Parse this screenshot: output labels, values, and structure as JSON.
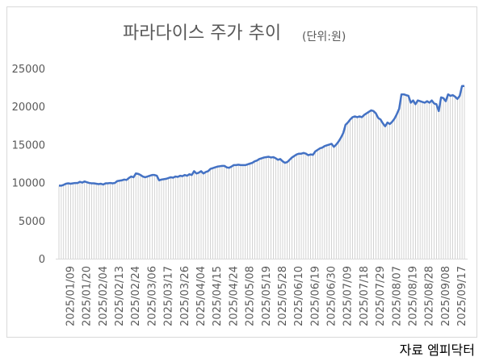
{
  "chart_data": {
    "type": "line",
    "title": "파라다이스 주가 추이",
    "subtitle": "(단위:원)",
    "source": "자료 엠피닥터",
    "categories": [
      null,
      null,
      null,
      null,
      null,
      "2025/01/09",
      null,
      null,
      null,
      null,
      null,
      null,
      "2025/01/20",
      null,
      null,
      null,
      null,
      null,
      null,
      "2025/02/04",
      null,
      null,
      null,
      null,
      null,
      null,
      "2025/02/13",
      null,
      null,
      null,
      null,
      null,
      null,
      "2025/02/24",
      null,
      null,
      null,
      null,
      null,
      null,
      "2025/03/06",
      null,
      null,
      null,
      null,
      null,
      null,
      "2025/03/17",
      null,
      null,
      null,
      null,
      null,
      null,
      "2025/03/26",
      null,
      null,
      null,
      null,
      null,
      null,
      "2025/04/04",
      null,
      null,
      null,
      null,
      null,
      null,
      "2025/04/15",
      null,
      null,
      null,
      null,
      null,
      null,
      "2025/04/24",
      null,
      null,
      null,
      null,
      null,
      null,
      "2025/05/08",
      null,
      null,
      null,
      null,
      null,
      null,
      "2025/05/19",
      null,
      null,
      null,
      null,
      null,
      null,
      "2025/05/28",
      null,
      null,
      null,
      null,
      null,
      null,
      "2025/06/10",
      null,
      null,
      null,
      null,
      null,
      null,
      "2025/06/19",
      null,
      null,
      null,
      null,
      null,
      null,
      "2025/06/30",
      null,
      null,
      null,
      null,
      null,
      null,
      "2025/07/09",
      null,
      null,
      null,
      null,
      null,
      null,
      "2025/07/18",
      null,
      null,
      null,
      null,
      null,
      null,
      "2025/07/29",
      null,
      null,
      null,
      null,
      null,
      null,
      "2025/08/07",
      null,
      null,
      null,
      null,
      null,
      null,
      "2025/08/19",
      null,
      null,
      null,
      null,
      null,
      null,
      "2025/08/28",
      null,
      null,
      null,
      null,
      null,
      null,
      "2025/09/08",
      null,
      null,
      null,
      null,
      null,
      null,
      "2025/09/17",
      null
    ],
    "values": [
      9600,
      9600,
      9700,
      9850,
      9900,
      9850,
      9900,
      9950,
      9950,
      10100,
      10000,
      10150,
      10050,
      9950,
      9900,
      9900,
      9850,
      9800,
      9850,
      9750,
      9900,
      9900,
      9950,
      9900,
      9950,
      10200,
      10250,
      10300,
      10400,
      10350,
      10600,
      10800,
      10700,
      11200,
      11150,
      11000,
      10800,
      10700,
      10800,
      10900,
      11000,
      11000,
      10900,
      10300,
      10400,
      10450,
      10500,
      10600,
      10700,
      10650,
      10800,
      10750,
      10900,
      10850,
      11000,
      10900,
      11100,
      11000,
      11500,
      11200,
      11300,
      11500,
      11200,
      11400,
      11500,
      11800,
      11900,
      12000,
      12100,
      12150,
      12200,
      12200,
      12000,
      11950,
      12100,
      12300,
      12300,
      12350,
      12300,
      12300,
      12300,
      12400,
      12500,
      12600,
      12800,
      12900,
      13100,
      13200,
      13300,
      13350,
      13400,
      13300,
      13350,
      13200,
      13000,
      13100,
      12800,
      12600,
      12700,
      13000,
      13300,
      13500,
      13700,
      13800,
      13800,
      13900,
      13800,
      13600,
      13700,
      13650,
      14100,
      14300,
      14500,
      14600,
      14800,
      14900,
      15000,
      15100,
      14700,
      15000,
      15400,
      15900,
      16500,
      17600,
      17900,
      18300,
      18600,
      18700,
      18600,
      18700,
      18600,
      18900,
      19100,
      19300,
      19500,
      19400,
      19100,
      18500,
      18300,
      17800,
      17400,
      17900,
      17700,
      18000,
      18400,
      19000,
      19700,
      21600,
      21600,
      21500,
      21400,
      20500,
      20800,
      20300,
      20800,
      20700,
      20600,
      20500,
      20700,
      20500,
      20800,
      20400,
      20300,
      19400,
      21200,
      21100,
      20700,
      21600,
      21400,
      21500,
      21300,
      21000,
      21400,
      22700,
      22700
    ],
    "color": "#4472c4",
    "stripe_color": "#c8c8c8",
    "ylim": [
      0,
      25000
    ],
    "yticks": [
      0,
      5000,
      10000,
      15000,
      20000,
      25000
    ]
  }
}
